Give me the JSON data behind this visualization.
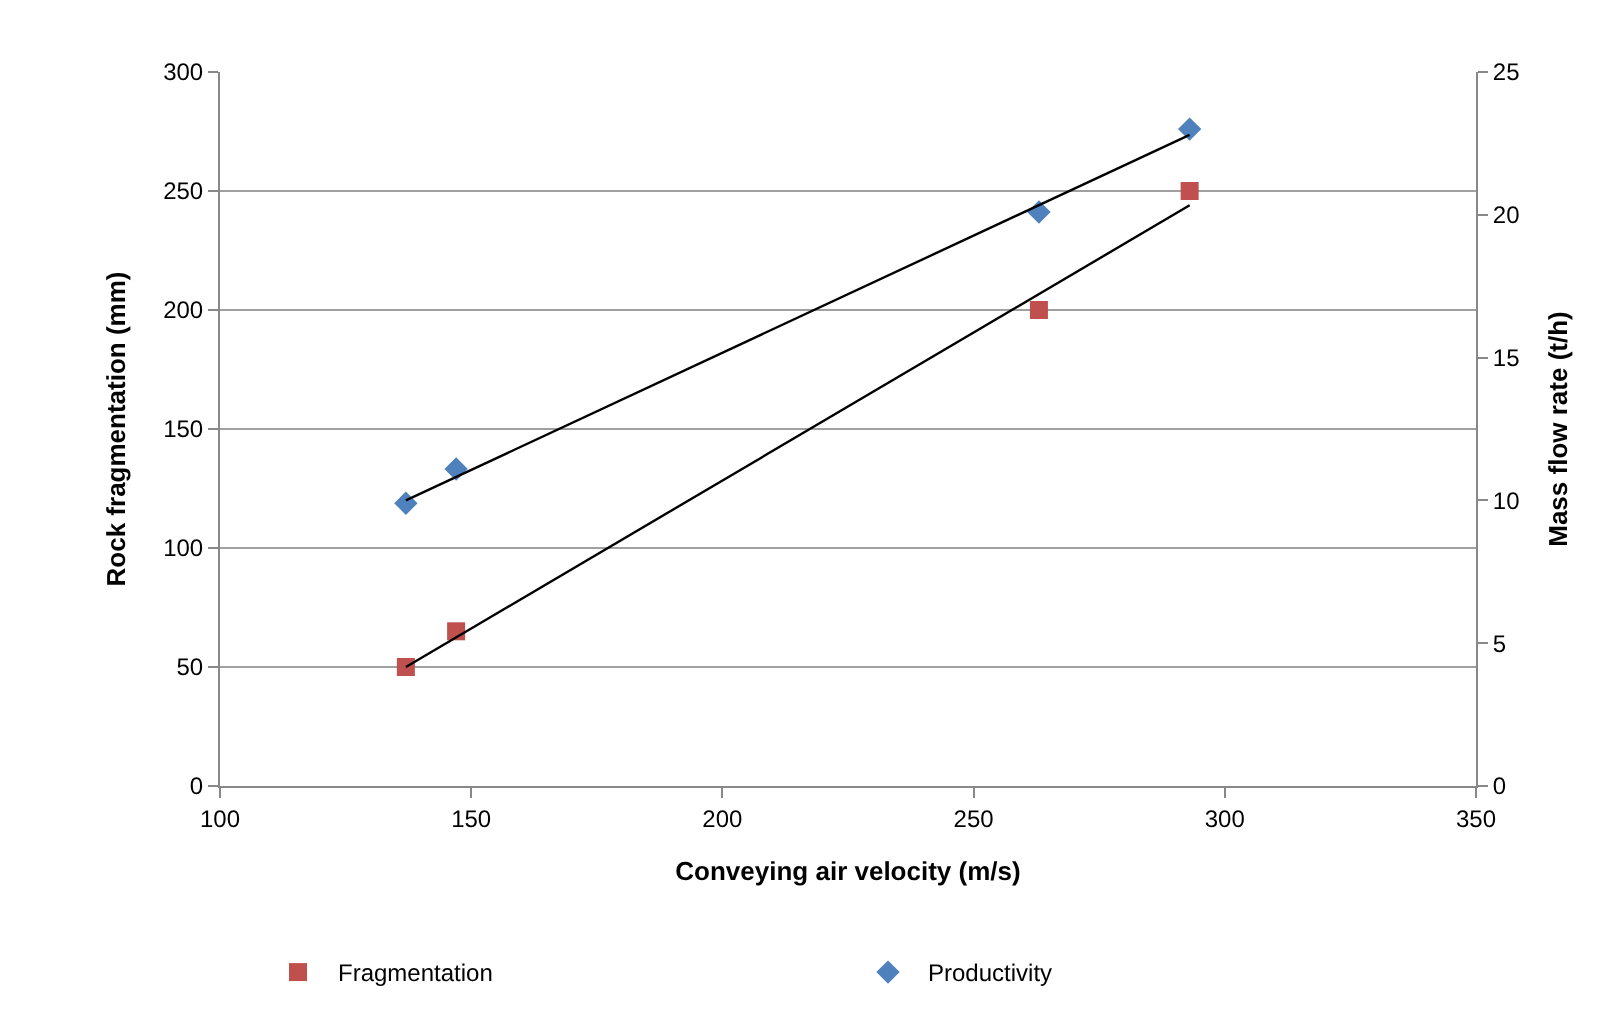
{
  "chart_data": {
    "type": "scatter",
    "xlabel": "Conveying air velocity (m/s)",
    "ylabel": "Rock fragmentation (mm)",
    "y2label": "Mass flow rate (t/h)",
    "xlim": [
      100,
      350
    ],
    "xticks": [
      100,
      150,
      200,
      250,
      300,
      350
    ],
    "ylim": [
      0,
      300
    ],
    "yticks": [
      0,
      50,
      100,
      150,
      200,
      250,
      300
    ],
    "y2lim": [
      0,
      25
    ],
    "y2ticks": [
      0,
      5,
      10,
      15,
      20,
      25
    ],
    "grid": "y",
    "legend": "bottom",
    "series": [
      {
        "name": "Fragmentation",
        "marker": "square",
        "color": "#c0504d",
        "x": [
          137,
          147,
          263,
          293
        ],
        "values": [
          50,
          65,
          200,
          250
        ]
      },
      {
        "name": "Productivity",
        "marker": "diamond",
        "color": "#4f81bd",
        "axis": "y2",
        "x": [
          137,
          147,
          263,
          293
        ],
        "values": [
          9.9,
          11.1,
          20.1,
          23.0
        ]
      },
      {
        "type": "line",
        "color": "#000000",
        "marker": "none",
        "x": [
          137,
          293
        ],
        "values": [
          50,
          244
        ]
      },
      {
        "type": "line",
        "color": "#000000",
        "marker": "none",
        "axis": "y2",
        "x": [
          137,
          293
        ],
        "values": [
          10.0,
          22.8
        ]
      }
    ]
  }
}
